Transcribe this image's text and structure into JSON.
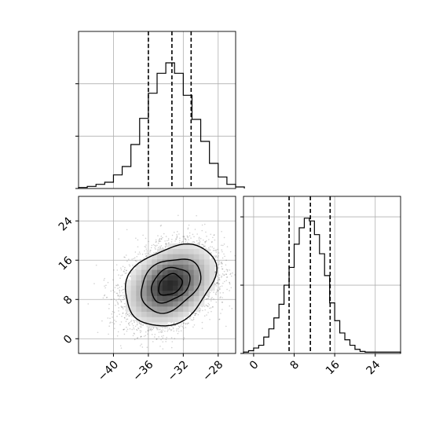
{
  "chart_data": [
    {
      "type": "histogram",
      "panel": "marginal-x",
      "bins": [
        {
          "x0": -44,
          "x1": -43,
          "density": 0.02
        },
        {
          "x0": -43,
          "x1": -42,
          "density": 0.04
        },
        {
          "x0": -42,
          "x1": -41,
          "density": 0.08
        },
        {
          "x0": -41,
          "x1": -40,
          "density": 0.12
        },
        {
          "x0": -40,
          "x1": -39,
          "density": 0.26
        },
        {
          "x0": -39,
          "x1": -38,
          "density": 0.42
        },
        {
          "x0": -38,
          "x1": -37,
          "density": 0.84
        },
        {
          "x0": -37,
          "x1": -36,
          "density": 1.34
        },
        {
          "x0": -36,
          "x1": -35,
          "density": 1.82
        },
        {
          "x0": -35,
          "x1": -34,
          "density": 2.2
        },
        {
          "x0": -34,
          "x1": -33,
          "density": 2.4
        },
        {
          "x0": -33,
          "x1": -32,
          "density": 2.2
        },
        {
          "x0": -32,
          "x1": -31,
          "density": 1.78
        },
        {
          "x0": -31,
          "x1": -30,
          "density": 1.32
        },
        {
          "x0": -30,
          "x1": -29,
          "density": 0.9
        },
        {
          "x0": -29,
          "x1": -28,
          "density": 0.48
        },
        {
          "x0": -28,
          "x1": -27,
          "density": 0.22
        },
        {
          "x0": -27,
          "x1": -26,
          "density": 0.08
        },
        {
          "x0": -26,
          "x1": -25,
          "density": 0.03
        }
      ],
      "quantiles": [
        -36.0,
        -33.3,
        -31.1
      ],
      "xlim": [
        -44,
        -26
      ],
      "ylim": [
        0,
        3.0
      ],
      "grid": true,
      "tick_labels": []
    },
    {
      "type": "histogram",
      "panel": "marginal-y",
      "bins": [
        {
          "x0": -2,
          "x1": -1,
          "density": 0.02
        },
        {
          "x0": -1,
          "x1": 0,
          "density": 0.04
        },
        {
          "x0": 0,
          "x1": 1,
          "density": 0.08
        },
        {
          "x0": 1,
          "x1": 2,
          "density": 0.12
        },
        {
          "x0": 2,
          "x1": 3,
          "density": 0.24
        },
        {
          "x0": 3,
          "x1": 4,
          "density": 0.36
        },
        {
          "x0": 4,
          "x1": 5,
          "density": 0.52
        },
        {
          "x0": 5,
          "x1": 6,
          "density": 0.72
        },
        {
          "x0": 6,
          "x1": 7,
          "density": 1.0
        },
        {
          "x0": 7,
          "x1": 8,
          "density": 1.26
        },
        {
          "x0": 8,
          "x1": 9,
          "density": 1.6
        },
        {
          "x0": 9,
          "x1": 10,
          "density": 1.84
        },
        {
          "x0": 10,
          "x1": 11,
          "density": 1.98
        },
        {
          "x0": 11,
          "x1": 12,
          "density": 1.94
        },
        {
          "x0": 12,
          "x1": 13,
          "density": 1.74
        },
        {
          "x0": 13,
          "x1": 14,
          "density": 1.46
        },
        {
          "x0": 14,
          "x1": 15,
          "density": 1.14
        },
        {
          "x0": 15,
          "x1": 16,
          "density": 0.74
        },
        {
          "x0": 16,
          "x1": 17,
          "density": 0.48
        },
        {
          "x0": 17,
          "x1": 18,
          "density": 0.3
        },
        {
          "x0": 18,
          "x1": 19,
          "density": 0.2
        },
        {
          "x0": 19,
          "x1": 20,
          "density": 0.12
        },
        {
          "x0": 20,
          "x1": 21,
          "density": 0.06
        },
        {
          "x0": 21,
          "x1": 22,
          "density": 0.03
        },
        {
          "x0": 22,
          "x1": 25,
          "density": 0.02
        },
        {
          "x0": 25,
          "x1": 29,
          "density": 0.02
        }
      ],
      "quantiles": [
        7.0,
        11.2,
        15.1
      ],
      "xlim": [
        -2,
        29
      ],
      "ylim": [
        0,
        2.3
      ],
      "grid": true,
      "xticks": [
        0,
        8,
        16,
        24
      ],
      "xtick_labels": [
        "0",
        "8",
        "16",
        "24"
      ]
    },
    {
      "type": "scatter-contour",
      "panel": "joint",
      "x_center": -33.5,
      "y_center": 11.0,
      "x_sd": 2.5,
      "y_sd": 4.0,
      "correlation": 0.3,
      "samples": 6000,
      "contour_levels_sigma": [
        0.5,
        1.0,
        1.5,
        2.0
      ],
      "xlim": [
        -44,
        -26
      ],
      "ylim": [
        -3,
        29
      ],
      "grid": true,
      "xticks": [
        -40,
        -36,
        -32,
        -28
      ],
      "xtick_labels": [
        "−40",
        "−36",
        "−32",
        "−28"
      ],
      "yticks": [
        0,
        8,
        16,
        24
      ],
      "ytick_labels": [
        "0",
        "8",
        "16",
        "24"
      ]
    }
  ]
}
